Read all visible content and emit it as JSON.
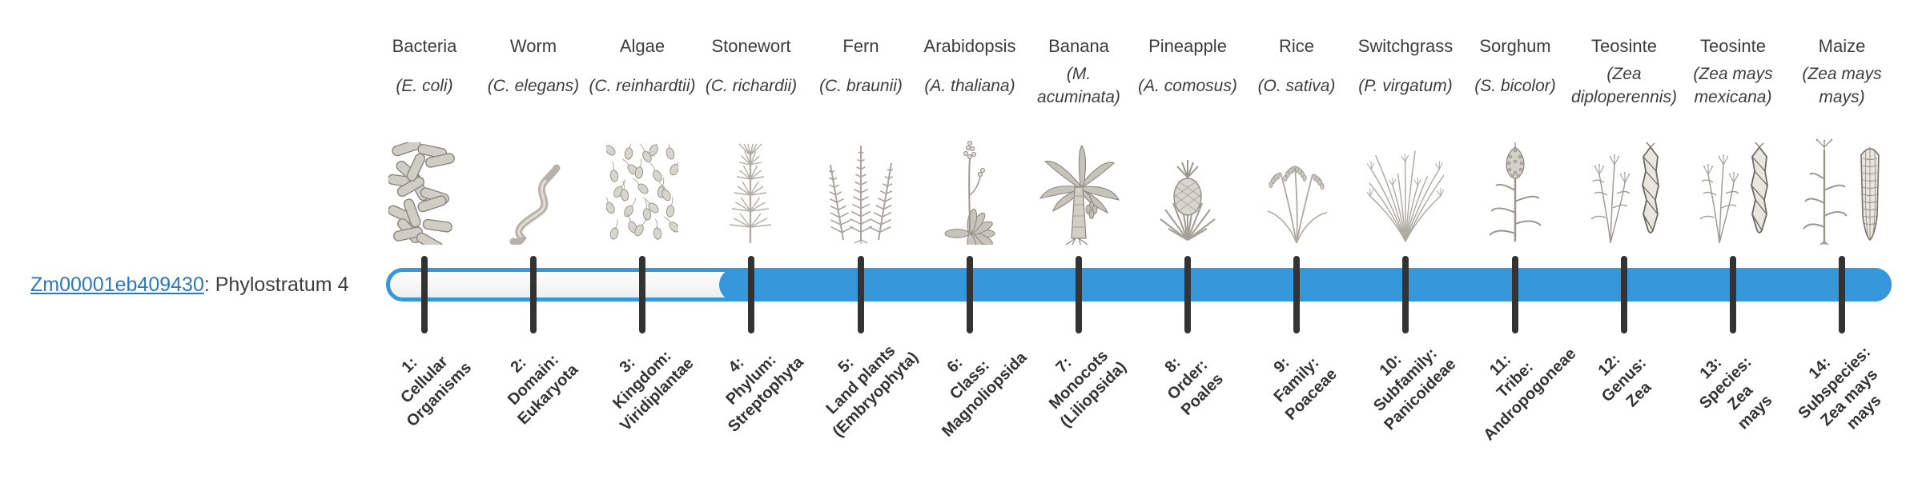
{
  "gene": {
    "id": "Zm00001eb409430",
    "annotation": ": Phylostratum 4"
  },
  "colors": {
    "accent": "#3697db",
    "tick": "#333333",
    "text": "#3d3d3d",
    "link": "#2a79bd",
    "track_interior": "#f7f7f7"
  },
  "phylostratum_fill_range": {
    "from_stratum": 4,
    "to_stratum": 14
  },
  "columns": [
    {
      "name": "Bacteria",
      "species": "(E. coli)",
      "icon": "bacteria",
      "stratum_lines": [
        "1:",
        "Cellular",
        "Organisms"
      ]
    },
    {
      "name": "Worm",
      "species": "(C. elegans)",
      "icon": "worm",
      "stratum_lines": [
        "2:",
        "Domain:",
        "Eukaryota"
      ]
    },
    {
      "name": "Algae",
      "species": "(C. reinhardtii)",
      "icon": "algae",
      "stratum_lines": [
        "3:",
        "Kingdom:",
        "Viridiplantae"
      ]
    },
    {
      "name": "Stonewort",
      "species": "(C. richardii)",
      "icon": "stonewort",
      "stratum_lines": [
        "4:",
        "Phylum:",
        "Streptophyta"
      ]
    },
    {
      "name": "Fern",
      "species": "(C. braunii)",
      "icon": "fern",
      "stratum_lines": [
        "5:",
        "Land plants",
        "(Embryophyta)"
      ]
    },
    {
      "name": "Arabidopsis",
      "species": "(A. thaliana)",
      "icon": "arabidopsis",
      "stratum_lines": [
        "6:",
        "Class:",
        "Magnoliopsida"
      ]
    },
    {
      "name": "Banana",
      "species": "(M. acuminata)",
      "icon": "banana",
      "stratum_lines": [
        "7:",
        "Monocots",
        "(Liliopsida)"
      ]
    },
    {
      "name": "Pineapple",
      "species": "(A. comosus)",
      "icon": "pineapple",
      "stratum_lines": [
        "8:",
        "Order:",
        "Poales"
      ]
    },
    {
      "name": "Rice",
      "species": "(O. sativa)",
      "icon": "rice",
      "stratum_lines": [
        "9:",
        "Family:",
        "Poaceae"
      ]
    },
    {
      "name": "Switchgrass",
      "species": "(P. virgatum)",
      "icon": "switchgrass",
      "stratum_lines": [
        "10:",
        "Subfamily:",
        "Panicoideae"
      ]
    },
    {
      "name": "Sorghum",
      "species": "(S. bicolor)",
      "icon": "sorghum",
      "stratum_lines": [
        "11:",
        "Tribe:",
        "Andropogoneae"
      ]
    },
    {
      "name": "Teosinte",
      "species": "(Zea diploperennis)",
      "icon": "teosinte-diplo",
      "stratum_lines": [
        "12:",
        "Genus:",
        "Zea"
      ]
    },
    {
      "name": "Teosinte",
      "species": "(Zea mays mexicana)",
      "icon": "teosinte-mexicana",
      "stratum_lines": [
        "13:",
        "Species:",
        "Zea",
        "mays"
      ]
    },
    {
      "name": "Maize",
      "species": "(Zea mays mays)",
      "icon": "maize",
      "stratum_lines": [
        "14:",
        "Subspecies:",
        "Zea mays",
        "mays"
      ]
    }
  ]
}
